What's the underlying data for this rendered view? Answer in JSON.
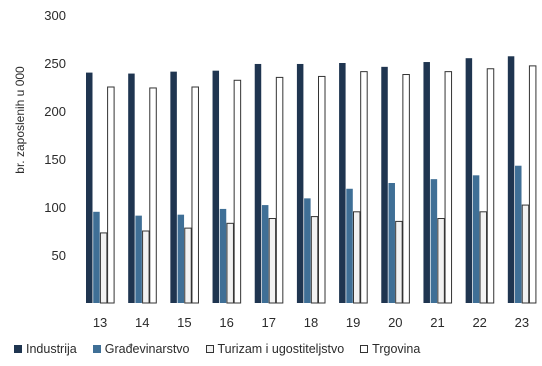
{
  "chart_data": {
    "type": "bar",
    "title": "",
    "xlabel": "",
    "ylabel": "br. zaposlenih u 000",
    "ylim": [
      0,
      300
    ],
    "yticks": [
      50,
      100,
      150,
      200,
      250,
      300
    ],
    "grid": false,
    "legend_position": "bottom",
    "categories": [
      "13",
      "14",
      "15",
      "16",
      "17",
      "18",
      "19",
      "20",
      "21",
      "22",
      "23"
    ],
    "series": [
      {
        "name": "Industrija",
        "color": "#1f3550",
        "values": [
          240,
          239,
          241,
          242,
          249,
          249,
          250,
          246,
          251,
          255,
          257
        ]
      },
      {
        "name": "Građevinarstvo",
        "color": "#3f6f96",
        "values": [
          95,
          91,
          92,
          98,
          102,
          109,
          119,
          125,
          129,
          133,
          143
        ]
      },
      {
        "name": "Turizam i ugostiteljstvo",
        "color": "#f2f2f2",
        "values": [
          73,
          75,
          78,
          83,
          88,
          90,
          95,
          85,
          88,
          95,
          102
        ]
      },
      {
        "name": "Trgovina",
        "color": "#ffffff",
        "values": [
          225,
          224,
          225,
          232,
          235,
          236,
          241,
          238,
          241,
          244,
          247
        ]
      }
    ]
  }
}
